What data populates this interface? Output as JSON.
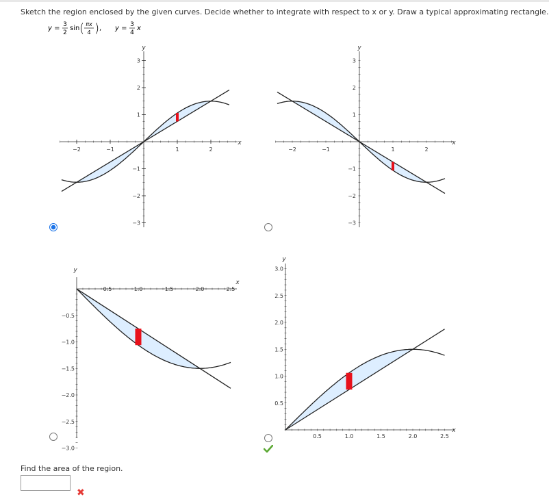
{
  "question": {
    "prompt": "Sketch the region enclosed by the given curves. Decide whether to integrate with respect to x or y. Draw a typical approximating rectangle.",
    "eq1": {
      "lhs": "y =",
      "num": "3",
      "den": "2",
      "fn": "sin",
      "arg_num": "πx",
      "arg_den": "4"
    },
    "eq2": {
      "lhs": "y =",
      "num": "3",
      "den": "4",
      "var": "x"
    }
  },
  "options": [
    {
      "selected": true,
      "x_ticks": [
        "−2",
        "−1",
        "1",
        "2"
      ],
      "y_ticks": [
        "3",
        "2",
        "1",
        "−1",
        "−2",
        "−3"
      ],
      "x_label": "x",
      "y_label": "y"
    },
    {
      "selected": false,
      "x_ticks": [
        "−2",
        "−1",
        "1",
        "2"
      ],
      "y_ticks": [
        "3",
        "2",
        "1",
        "−1",
        "−2",
        "−3"
      ],
      "x_label": "x",
      "y_label": "y"
    },
    {
      "selected": false,
      "x_ticks": [
        "0.5",
        "1.0",
        "1.5",
        "2.0",
        "2.5"
      ],
      "y_ticks": [
        "−0.5",
        "−1.0",
        "−1.5",
        "−2.0",
        "−2.5",
        "−3.0"
      ],
      "x_label": "x",
      "y_label": "y"
    },
    {
      "selected": false,
      "x_ticks": [
        "0.5",
        "1.0",
        "1.5",
        "2.0",
        "2.5"
      ],
      "y_ticks": [
        "3.0",
        "2.5",
        "2.0",
        "1.5",
        "1.0",
        "0.5"
      ],
      "x_label": "x",
      "y_label": "y",
      "marked_correct": true
    }
  ],
  "area": {
    "label": "Find the area of the region.",
    "answer_value": "",
    "status": "incorrect"
  },
  "colors": {
    "fill": "#ddeeff",
    "rect": "#e8111b",
    "check": "#5aa832",
    "cross": "#e53935",
    "radio": "#1a73e8"
  }
}
